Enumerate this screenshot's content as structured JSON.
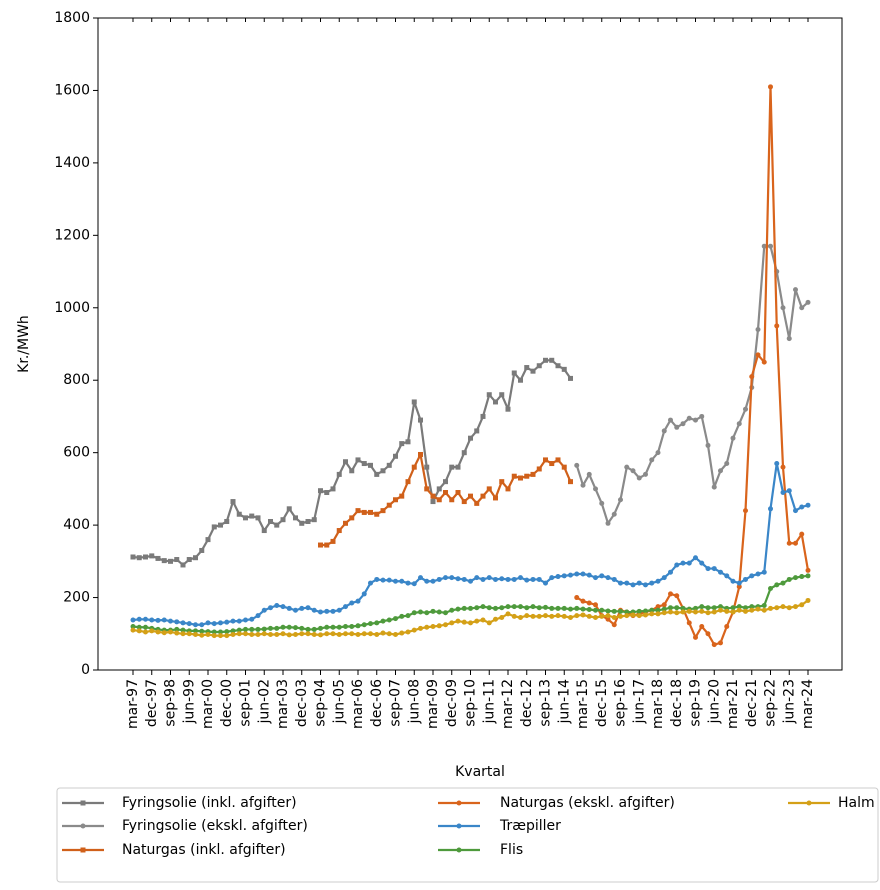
{
  "chart_data": {
    "type": "line",
    "x_label": "Kvartal",
    "y_label": "Kr./MWh",
    "categories": [
      "mar-97",
      null,
      null,
      "dec-97",
      null,
      null,
      "sep-98",
      null,
      null,
      "jun-99",
      null,
      null,
      "mar-00",
      null,
      null,
      "dec-00",
      null,
      null,
      "sep-01",
      null,
      null,
      "jun-02",
      null,
      null,
      "mar-03",
      null,
      null,
      "dec-03",
      null,
      null,
      "sep-04",
      null,
      null,
      "jun-05",
      null,
      null,
      "mar-06",
      null,
      null,
      "dec-06",
      null,
      null,
      "sep-07",
      null,
      null,
      "jun-08",
      null,
      null,
      "mar-09",
      null,
      null,
      "dec-09",
      null,
      null,
      "sep-10",
      null,
      null,
      "jun-11",
      null,
      null,
      "mar-12",
      null,
      null,
      "dec-12",
      null,
      null,
      "sep-13",
      null,
      null,
      "jun-14",
      null,
      null,
      "mar-15",
      null,
      null,
      "dec-15",
      null,
      null,
      "sep-16",
      null,
      null,
      "jun-17",
      null,
      null,
      "mar-18",
      null,
      null,
      "dec-18",
      null,
      null,
      "sep-19",
      null,
      null,
      "jun-20",
      null,
      null,
      "mar-21",
      null,
      null,
      "dec-21",
      null,
      null,
      "sep-22",
      null,
      null,
      "jun-23",
      null,
      null,
      "mar-24"
    ],
    "ylim": [
      0,
      1800
    ],
    "yticks": [
      0,
      200,
      400,
      600,
      800,
      1000,
      1200,
      1400,
      1600,
      1800
    ],
    "series": [
      {
        "name": "Fyringsolie (inkl. afgifter)",
        "color": "#7a7a7a",
        "marker": "square",
        "values": [
          312,
          310,
          312,
          315,
          308,
          302,
          300,
          305,
          290,
          305,
          310,
          330,
          360,
          395,
          400,
          410,
          465,
          430,
          420,
          425,
          420,
          385,
          410,
          400,
          415,
          445,
          420,
          405,
          410,
          415,
          495,
          490,
          500,
          540,
          575,
          550,
          580,
          570,
          565,
          540,
          550,
          565,
          590,
          625,
          630,
          740,
          690,
          560,
          465,
          500,
          520,
          560,
          560,
          600,
          640,
          660,
          700,
          760,
          740,
          760,
          720,
          820,
          800,
          835,
          825,
          840,
          855,
          855,
          840,
          830,
          805,
          null,
          null,
          null,
          null,
          null,
          null,
          null,
          null,
          null,
          null,
          null,
          null,
          null,
          null,
          null,
          null,
          null,
          null,
          null,
          null,
          null,
          null,
          null,
          null,
          null,
          null,
          null,
          null,
          null,
          null,
          null,
          null,
          null,
          null,
          null,
          null,
          null,
          null
        ]
      },
      {
        "name": "Fyringsolie (ekskl. afgifter)",
        "color": "#8a8a8a",
        "marker": "circle",
        "values": [
          null,
          null,
          null,
          null,
          null,
          null,
          null,
          null,
          null,
          null,
          null,
          null,
          null,
          null,
          null,
          null,
          null,
          null,
          null,
          null,
          null,
          null,
          null,
          null,
          null,
          null,
          null,
          null,
          null,
          null,
          null,
          null,
          null,
          null,
          null,
          null,
          null,
          null,
          null,
          null,
          null,
          null,
          null,
          null,
          null,
          null,
          null,
          null,
          null,
          null,
          null,
          null,
          null,
          null,
          null,
          null,
          null,
          null,
          null,
          null,
          null,
          null,
          null,
          null,
          null,
          null,
          null,
          null,
          null,
          null,
          null,
          565,
          510,
          540,
          500,
          460,
          405,
          430,
          470,
          560,
          550,
          530,
          540,
          580,
          600,
          660,
          690,
          670,
          680,
          695,
          690,
          700,
          620,
          505,
          550,
          570,
          640,
          680,
          720,
          780,
          940,
          1170,
          1170,
          1100,
          1000,
          915,
          1050,
          1000,
          1015
        ]
      },
      {
        "name": "Naturgas (inkl. afgifter)",
        "color": "#d0601a",
        "marker": "square",
        "values": [
          null,
          null,
          null,
          null,
          null,
          null,
          null,
          null,
          null,
          null,
          null,
          null,
          null,
          null,
          null,
          null,
          null,
          null,
          null,
          null,
          null,
          null,
          null,
          null,
          null,
          null,
          null,
          null,
          null,
          null,
          345,
          345,
          355,
          385,
          405,
          420,
          440,
          435,
          435,
          430,
          440,
          455,
          470,
          480,
          520,
          560,
          595,
          500,
          480,
          470,
          490,
          470,
          490,
          465,
          480,
          460,
          480,
          500,
          475,
          520,
          500,
          535,
          530,
          535,
          540,
          555,
          580,
          570,
          580,
          560,
          520,
          null,
          null,
          null,
          null,
          null,
          null,
          null,
          null,
          null,
          null,
          null,
          null,
          null,
          null,
          null,
          null,
          null,
          null,
          null,
          null,
          null,
          null,
          null,
          null,
          null,
          null,
          null,
          null,
          null,
          null,
          null,
          null,
          null,
          null,
          null,
          null,
          null,
          null
        ]
      },
      {
        "name": "Naturgas (ekskl. afgifter)",
        "color": "#d9641c",
        "marker": "circle",
        "values": [
          null,
          null,
          null,
          null,
          null,
          null,
          null,
          null,
          null,
          null,
          null,
          null,
          null,
          null,
          null,
          null,
          null,
          null,
          null,
          null,
          null,
          null,
          null,
          null,
          null,
          null,
          null,
          null,
          null,
          null,
          null,
          null,
          null,
          null,
          null,
          null,
          null,
          null,
          null,
          null,
          null,
          null,
          null,
          null,
          null,
          null,
          null,
          null,
          null,
          null,
          null,
          null,
          null,
          null,
          null,
          null,
          null,
          null,
          null,
          null,
          null,
          null,
          null,
          null,
          null,
          null,
          null,
          null,
          null,
          null,
          null,
          200,
          190,
          185,
          180,
          150,
          140,
          125,
          165,
          160,
          150,
          155,
          160,
          165,
          175,
          180,
          210,
          205,
          170,
          130,
          90,
          120,
          100,
          70,
          75,
          120,
          160,
          230,
          440,
          810,
          870,
          850,
          1610,
          950,
          560,
          350,
          350,
          375,
          275
        ]
      },
      {
        "name": "Træpiller",
        "color": "#3a86c8",
        "marker": "circle",
        "values": [
          138,
          140,
          140,
          138,
          137,
          138,
          135,
          133,
          130,
          128,
          125,
          125,
          130,
          128,
          130,
          132,
          135,
          135,
          138,
          140,
          150,
          165,
          172,
          178,
          175,
          170,
          165,
          170,
          172,
          165,
          160,
          162,
          162,
          165,
          175,
          185,
          190,
          210,
          240,
          250,
          248,
          248,
          245,
          245,
          240,
          238,
          255,
          245,
          245,
          250,
          255,
          255,
          252,
          250,
          245,
          255,
          250,
          255,
          250,
          252,
          250,
          250,
          255,
          248,
          250,
          250,
          240,
          255,
          258,
          260,
          262,
          265,
          265,
          262,
          255,
          260,
          255,
          250,
          240,
          240,
          235,
          240,
          235,
          240,
          245,
          255,
          270,
          290,
          295,
          295,
          310,
          295,
          280,
          280,
          270,
          260,
          245,
          240,
          250,
          260,
          265,
          270,
          445,
          570,
          490,
          495,
          440,
          450,
          455
        ]
      },
      {
        "name": "Flis",
        "color": "#4e9a3c",
        "marker": "circle",
        "values": [
          120,
          118,
          118,
          115,
          112,
          110,
          110,
          112,
          110,
          108,
          108,
          107,
          106,
          105,
          105,
          106,
          108,
          110,
          112,
          112,
          112,
          113,
          115,
          115,
          118,
          118,
          117,
          115,
          112,
          112,
          115,
          118,
          118,
          118,
          120,
          120,
          122,
          125,
          128,
          130,
          135,
          138,
          142,
          148,
          150,
          158,
          160,
          158,
          162,
          160,
          158,
          165,
          168,
          170,
          170,
          172,
          175,
          172,
          170,
          172,
          175,
          175,
          175,
          172,
          175,
          172,
          173,
          170,
          170,
          170,
          168,
          170,
          168,
          167,
          165,
          165,
          163,
          162,
          162,
          160,
          160,
          162,
          163,
          165,
          165,
          168,
          172,
          172,
          170,
          168,
          170,
          175,
          172,
          172,
          175,
          170,
          172,
          175,
          172,
          175,
          175,
          178,
          225,
          235,
          240,
          250,
          255,
          258,
          260
        ]
      },
      {
        "name": "Halm",
        "color": "#d4a017",
        "marker": "circle",
        "values": [
          110,
          108,
          105,
          108,
          105,
          103,
          105,
          102,
          100,
          100,
          98,
          96,
          98,
          95,
          95,
          95,
          98,
          100,
          100,
          98,
          98,
          100,
          98,
          98,
          100,
          97,
          98,
          100,
          100,
          98,
          97,
          100,
          100,
          98,
          100,
          100,
          98,
          100,
          100,
          98,
          102,
          100,
          98,
          102,
          105,
          110,
          115,
          118,
          120,
          122,
          125,
          130,
          135,
          132,
          130,
          135,
          138,
          130,
          140,
          145,
          155,
          148,
          145,
          150,
          148,
          148,
          150,
          148,
          150,
          148,
          145,
          150,
          152,
          148,
          145,
          148,
          150,
          145,
          148,
          150,
          152,
          150,
          152,
          155,
          155,
          158,
          160,
          158,
          160,
          162,
          160,
          162,
          158,
          160,
          165,
          162,
          160,
          165,
          162,
          165,
          168,
          165,
          170,
          172,
          175,
          172,
          175,
          180,
          192
        ]
      }
    ]
  }
}
